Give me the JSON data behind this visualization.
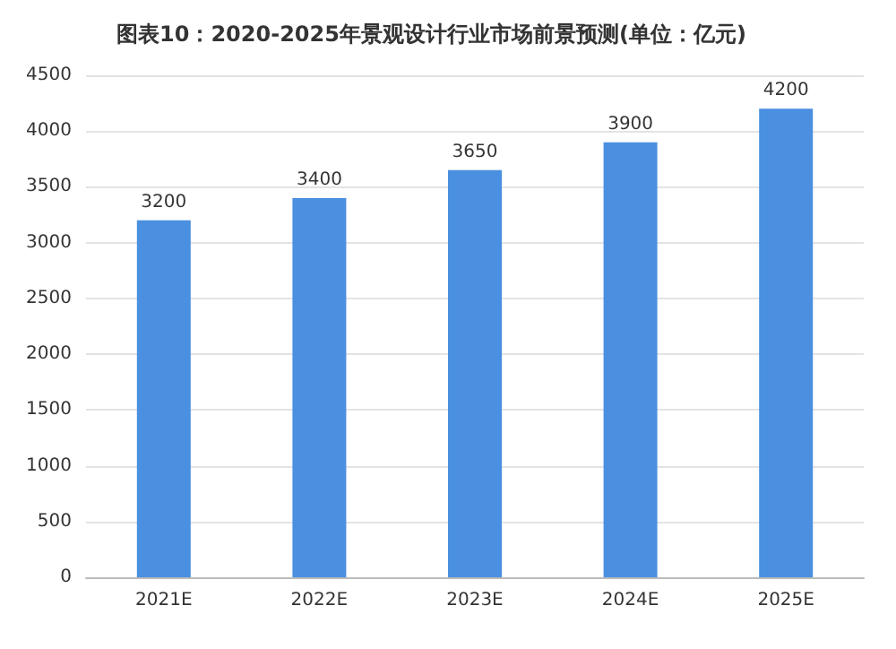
{
  "chart_data": {
    "type": "bar",
    "title": "图表10：2020-2025年景观设计行业市场前景预测(单位：亿元)",
    "categories": [
      "2021E",
      "2022E",
      "2023E",
      "2024E",
      "2025E"
    ],
    "values": [
      3200,
      3400,
      3650,
      3900,
      4200
    ],
    "color": "#4a8fe0",
    "ylim": [
      0,
      4500
    ],
    "yticks": [
      0,
      500,
      1000,
      1500,
      2000,
      2500,
      3000,
      3500,
      4000,
      4500
    ],
    "grid": "y",
    "data_labels": true
  }
}
